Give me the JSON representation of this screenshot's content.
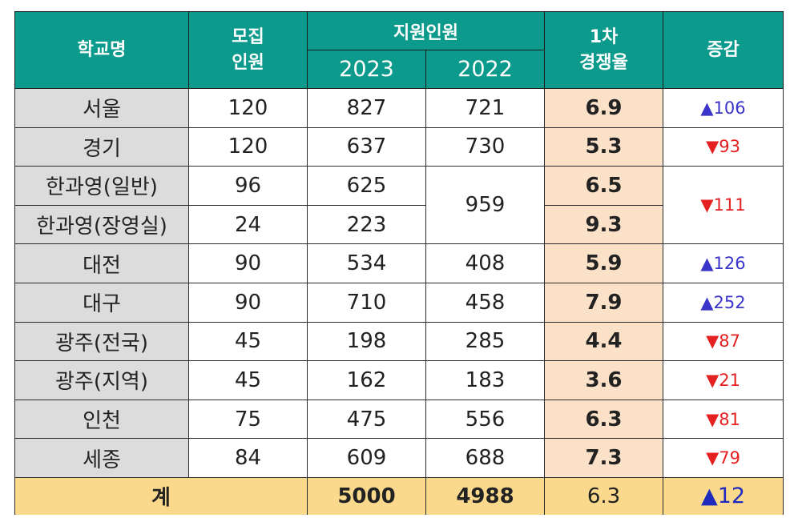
{
  "header": {
    "school": "학교명",
    "quota_line1": "모집",
    "quota_line2": "인원",
    "applicants": "지원인원",
    "year1": "2023",
    "year2": "2022",
    "rate_line1": "1차",
    "rate_line2": "경쟁율",
    "change": "증감"
  },
  "rows": [
    {
      "school": "서울",
      "quota": "120",
      "y2023": "827",
      "y2022": "721",
      "rate": "6.9",
      "change": "▲106",
      "dir": "up"
    },
    {
      "school": "경기",
      "quota": "120",
      "y2023": "637",
      "y2022": "730",
      "rate": "5.3",
      "change": "▼93",
      "dir": "down"
    },
    {
      "school": "한과영(일반)",
      "quota": "96",
      "y2023": "625",
      "y2022": "959",
      "rate": "6.5",
      "change": "▼111",
      "dir": "down"
    },
    {
      "school": "한과영(장영실)",
      "quota": "24",
      "y2023": "223",
      "rate": "9.3"
    },
    {
      "school": "대전",
      "quota": "90",
      "y2023": "534",
      "y2022": "408",
      "rate": "5.9",
      "change": "▲126",
      "dir": "up"
    },
    {
      "school": "대구",
      "quota": "90",
      "y2023": "710",
      "y2022": "458",
      "rate": "7.9",
      "change": "▲252",
      "dir": "up"
    },
    {
      "school": "광주(전국)",
      "quota": "45",
      "y2023": "198",
      "y2022": "285",
      "rate": "4.4",
      "change": "▼87",
      "dir": "down"
    },
    {
      "school": "광주(지역)",
      "quota": "45",
      "y2023": "162",
      "y2022": "183",
      "rate": "3.6",
      "change": "▼21",
      "dir": "down"
    },
    {
      "school": "인천",
      "quota": "75",
      "y2023": "475",
      "y2022": "556",
      "rate": "6.3",
      "change": "▼81",
      "dir": "down"
    },
    {
      "school": "세종",
      "quota": "84",
      "y2023": "609",
      "y2022": "688",
      "rate": "7.3",
      "change": "▼79",
      "dir": "down"
    }
  ],
  "total": {
    "label": "계",
    "y2023": "5000",
    "y2022": "4988",
    "rate": "6.3",
    "change": "▲12"
  },
  "colors": {
    "header_bg": "#0b9a8b",
    "school_bg": "#dcdcdc",
    "rate_bg": "#fbe1c8",
    "total_bg": "#fbd98c",
    "up": "#3a35c8",
    "down": "#e52020"
  }
}
